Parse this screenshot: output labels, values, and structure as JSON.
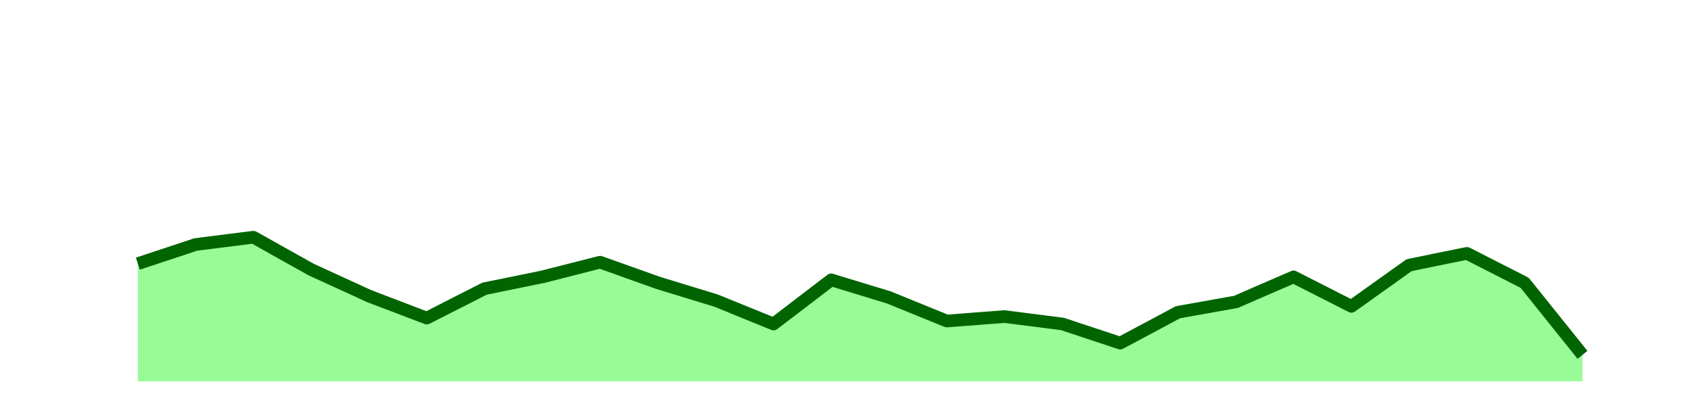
{
  "chart_data": {
    "type": "area",
    "x": [
      0,
      1,
      2,
      3,
      4,
      5,
      6,
      7,
      8,
      9,
      10,
      11,
      12,
      13,
      14,
      15,
      16,
      17,
      18,
      19,
      20,
      21,
      22,
      23,
      24,
      25
    ],
    "series": [
      {
        "values": [
          45,
          58,
          63,
          41,
          23,
          8,
          28,
          36,
          46,
          32,
          20,
          4,
          34,
          22,
          6,
          9,
          4,
          -9,
          12,
          19,
          36,
          16,
          44,
          52,
          32,
          -17
        ]
      }
    ],
    "ylim": [
      -35,
      210
    ],
    "grid": false,
    "legend": "none",
    "colors": {
      "line": "#006400",
      "fill": "#98fb98"
    }
  }
}
